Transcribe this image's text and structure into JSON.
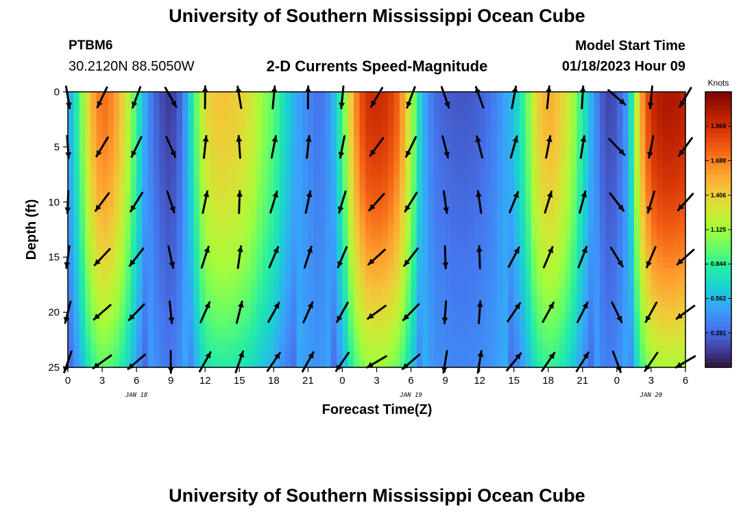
{
  "header": {
    "title": "University of Southern Mississippi Ocean Cube",
    "station": "PTBM6",
    "coordinates": "30.2120N  88.5050W",
    "subtitle": "2-D Currents Speed-Magnitude",
    "start_label": "Model Start Time",
    "start_value": "01/18/2023 Hour 09"
  },
  "footer": {
    "title": "University of Southern Mississippi Ocean Cube"
  },
  "chart_data": {
    "type": "heatmap",
    "title": "2-D Currents Speed-Magnitude",
    "xlabel": "Forecast Time(Z)",
    "ylabel": "Depth (ft)",
    "x_range_hours": [
      0,
      54
    ],
    "y_range_ft": [
      0,
      25
    ],
    "y_inverted": true,
    "x_tick_labels": [
      "0",
      "3",
      "6",
      "9",
      "12",
      "15",
      "18",
      "21",
      "0",
      "3",
      "6",
      "9",
      "12",
      "15",
      "18",
      "21",
      "0",
      "3",
      "6"
    ],
    "y_tick_labels": [
      "0",
      "5",
      "10",
      "15",
      "20",
      "25"
    ],
    "date_labels": [
      "JAN 18",
      "JAN 19",
      "JAN 20"
    ],
    "colorbar": {
      "unit": "Knots",
      "min": 0.0,
      "max": 2.25,
      "tick_labels": [
        "1.969",
        "1.688",
        "1.406",
        "1.125",
        "0.844",
        "0.562",
        "0.281"
      ],
      "colors": [
        "#30123b",
        "#4145ab",
        "#4675ed",
        "#39a2fc",
        "#1bcfd4",
        "#24eca6",
        "#61fc6c",
        "#a4fc3b",
        "#d1e834",
        "#f3c63a",
        "#fe9b2d",
        "#f36315",
        "#d93806",
        "#b11901",
        "#7a0403"
      ]
    },
    "speed_profile": [
      {
        "hour": 0,
        "speed": 0.45
      },
      {
        "hour": 1,
        "speed": 0.9
      },
      {
        "hour": 2,
        "speed": 1.5
      },
      {
        "hour": 3,
        "speed": 1.75
      },
      {
        "hour": 4,
        "speed": 1.65
      },
      {
        "hour": 5,
        "speed": 1.35
      },
      {
        "hour": 6,
        "speed": 0.85
      },
      {
        "hour": 7,
        "speed": 0.4
      },
      {
        "hour": 8,
        "speed": 0.2
      },
      {
        "hour": 9,
        "speed": 0.1
      },
      {
        "hour": 10,
        "speed": 0.3
      },
      {
        "hour": 11,
        "speed": 0.85
      },
      {
        "hour": 12,
        "speed": 1.35
      },
      {
        "hour": 13,
        "speed": 1.45
      },
      {
        "hour": 14,
        "speed": 1.45
      },
      {
        "hour": 15,
        "speed": 1.4
      },
      {
        "hour": 16,
        "speed": 1.3
      },
      {
        "hour": 17,
        "speed": 1.1
      },
      {
        "hour": 18,
        "speed": 0.95
      },
      {
        "hour": 19,
        "speed": 0.7
      },
      {
        "hour": 20,
        "speed": 0.5
      },
      {
        "hour": 21,
        "speed": 0.38
      },
      {
        "hour": 22,
        "speed": 0.3
      },
      {
        "hour": 23,
        "speed": 0.45
      },
      {
        "hour": 24,
        "speed": 0.9
      },
      {
        "hour": 25,
        "speed": 1.6
      },
      {
        "hour": 26,
        "speed": 1.95
      },
      {
        "hour": 27,
        "speed": 2.0
      },
      {
        "hour": 28,
        "speed": 1.95
      },
      {
        "hour": 29,
        "speed": 1.75
      },
      {
        "hour": 30,
        "speed": 1.2
      },
      {
        "hour": 31,
        "speed": 0.55
      },
      {
        "hour": 32,
        "speed": 0.3
      },
      {
        "hour": 33,
        "speed": 0.25
      },
      {
        "hour": 34,
        "speed": 0.22
      },
      {
        "hour": 35,
        "speed": 0.22
      },
      {
        "hour": 36,
        "speed": 0.25
      },
      {
        "hour": 37,
        "speed": 0.32
      },
      {
        "hour": 38,
        "speed": 0.45
      },
      {
        "hour": 39,
        "speed": 0.6
      },
      {
        "hour": 40,
        "speed": 0.9
      },
      {
        "hour": 41,
        "speed": 1.4
      },
      {
        "hour": 42,
        "speed": 1.55
      },
      {
        "hour": 43,
        "speed": 1.45
      },
      {
        "hour": 44,
        "speed": 1.2
      },
      {
        "hour": 45,
        "speed": 0.8
      },
      {
        "hour": 46,
        "speed": 0.45
      },
      {
        "hour": 47,
        "speed": 0.15
      },
      {
        "hour": 48,
        "speed": 0.2
      },
      {
        "hour": 49,
        "speed": 0.5
      },
      {
        "hour": 50,
        "speed": 1.5
      },
      {
        "hour": 51,
        "speed": 2.0
      },
      {
        "hour": 52,
        "speed": 2.1
      },
      {
        "hour": 53,
        "speed": 2.1
      },
      {
        "hour": 54,
        "speed": 2.05
      }
    ],
    "vector_columns": [
      {
        "hour": 0,
        "angle": 170
      },
      {
        "hour": 3,
        "angle": 205
      },
      {
        "hour": 6,
        "angle": 200
      },
      {
        "hour": 9,
        "angle": 150
      },
      {
        "hour": 12,
        "angle": 0
      },
      {
        "hour": 15,
        "angle": -10
      },
      {
        "hour": 18,
        "angle": 5
      },
      {
        "hour": 21,
        "angle": 0
      },
      {
        "hour": 24,
        "angle": 185
      },
      {
        "hour": 27,
        "angle": 210
      },
      {
        "hour": 30,
        "angle": 200
      },
      {
        "hour": 33,
        "angle": 160
      },
      {
        "hour": 36,
        "angle": -20
      },
      {
        "hour": 39,
        "angle": 10
      },
      {
        "hour": 42,
        "angle": 5
      },
      {
        "hour": 45,
        "angle": 3
      },
      {
        "hour": 48,
        "angle": 130
      },
      {
        "hour": 51,
        "angle": 185
      },
      {
        "hour": 54,
        "angle": 210
      }
    ]
  }
}
